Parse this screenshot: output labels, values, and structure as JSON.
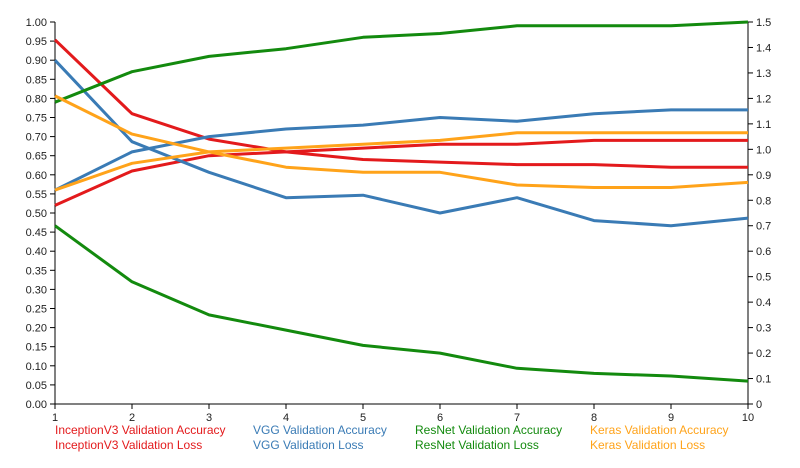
{
  "chart_data": {
    "type": "line",
    "x": [
      1,
      2,
      3,
      4,
      5,
      6,
      7,
      8,
      9,
      10
    ],
    "xlim": [
      1,
      10
    ],
    "ylim_left": [
      0,
      1
    ],
    "ylim_right": [
      0,
      1.5
    ],
    "left_ticks": [
      "0.00",
      "0.05",
      "0.10",
      "0.15",
      "0.20",
      "0.25",
      "0.30",
      "0.35",
      "0.40",
      "0.45",
      "0.50",
      "0.55",
      "0.60",
      "0.65",
      "0.70",
      "0.75",
      "0.80",
      "0.85",
      "0.90",
      "0.95",
      "1.00"
    ],
    "right_ticks": [
      "0",
      "0.1",
      "0.2",
      "0.3",
      "0.4",
      "0.5",
      "0.6",
      "0.7",
      "0.8",
      "0.9",
      "1.0",
      "1.1",
      "1.2",
      "1.3",
      "1.4",
      "1.5"
    ],
    "x_ticks": [
      "1",
      "2",
      "3",
      "4",
      "5",
      "6",
      "7",
      "8",
      "9",
      "10"
    ],
    "grid": false,
    "legend_position": "bottom",
    "series": [
      {
        "name": "InceptionV3 Validation Accuracy",
        "color": "#e31a1c",
        "axis": "left",
        "values": [
          0.52,
          0.61,
          0.65,
          0.66,
          0.67,
          0.68,
          0.68,
          0.69,
          0.69,
          0.69
        ]
      },
      {
        "name": "InceptionV3 Validation Loss",
        "color": "#e31a1c",
        "axis": "right",
        "values": [
          1.43,
          1.14,
          1.04,
          0.99,
          0.96,
          0.95,
          0.94,
          0.94,
          0.93,
          0.93
        ]
      },
      {
        "name": "VGG Validation Accuracy",
        "color": "#3a7bb5",
        "axis": "left",
        "values": [
          0.56,
          0.66,
          0.7,
          0.72,
          0.73,
          0.75,
          0.74,
          0.76,
          0.77,
          0.77
        ]
      },
      {
        "name": "VGG Validation Loss",
        "color": "#3a7bb5",
        "axis": "right",
        "values": [
          1.35,
          1.03,
          0.91,
          0.81,
          0.82,
          0.75,
          0.81,
          0.72,
          0.7,
          0.73
        ]
      },
      {
        "name": "ResNet Validation Accuracy",
        "color": "#138a0e",
        "axis": "left",
        "values": [
          0.79,
          0.87,
          0.91,
          0.93,
          0.96,
          0.97,
          0.99,
          0.99,
          0.99,
          1.0
        ]
      },
      {
        "name": "ResNet Validation Loss",
        "color": "#138a0e",
        "axis": "right",
        "values": [
          0.7,
          0.48,
          0.35,
          0.29,
          0.23,
          0.2,
          0.14,
          0.12,
          0.11,
          0.09
        ]
      },
      {
        "name": "Keras Validation Accuracy",
        "color": "#ffa31a",
        "axis": "left",
        "values": [
          0.56,
          0.63,
          0.66,
          0.67,
          0.68,
          0.69,
          0.71,
          0.71,
          0.71,
          0.71
        ]
      },
      {
        "name": "Keras Validation Loss",
        "color": "#ffa31a",
        "axis": "right",
        "values": [
          1.21,
          1.06,
          0.99,
          0.93,
          0.91,
          0.91,
          0.86,
          0.85,
          0.85,
          0.87
        ]
      }
    ]
  }
}
